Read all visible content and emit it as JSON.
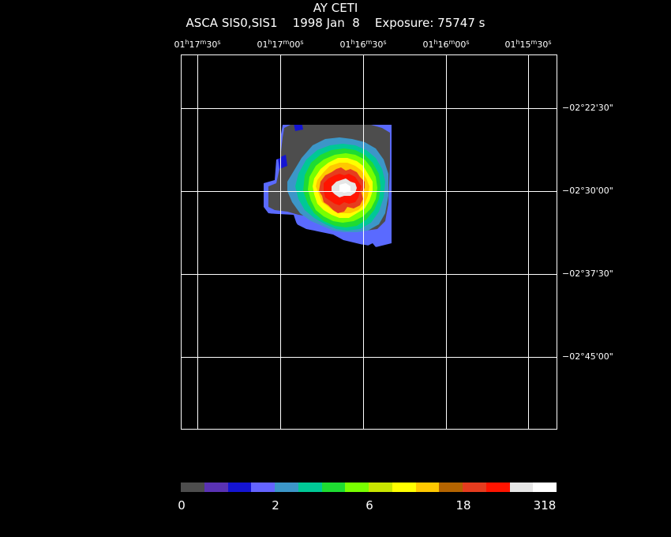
{
  "title": "AY CETI",
  "subtitle": "ASCA SIS0,SIS1    1998 Jan  8    Exposure: 75747 s",
  "ra_labels": [
    {
      "h": "01",
      "m": "17",
      "s": "30"
    },
    {
      "h": "01",
      "m": "17",
      "s": "00"
    },
    {
      "h": "01",
      "m": "16",
      "s": "30"
    },
    {
      "h": "01",
      "m": "16",
      "s": "00"
    },
    {
      "h": "01",
      "m": "15",
      "s": "30"
    }
  ],
  "ra_units": {
    "h": "h",
    "m": "m",
    "s": "s"
  },
  "dec_labels": [
    "−02°22'30\"",
    "−02°30'00\"",
    "−02°37'30\"",
    "−02°45'00\""
  ],
  "colorbar": {
    "colors": [
      "#4d4d4d",
      "#5a32b4",
      "#1414d2",
      "#6464ff",
      "#3c96c8",
      "#00c896",
      "#1edc32",
      "#78ff00",
      "#c8e600",
      "#ffff00",
      "#ffc800",
      "#b46400",
      "#e63c1e",
      "#ff1400",
      "#e6e6e6",
      "#ffffff"
    ],
    "tick_labels": [
      "0",
      "2",
      "6",
      "18",
      "318"
    ]
  },
  "colors": {
    "background": "#000000",
    "grid": "#ffffff"
  }
}
